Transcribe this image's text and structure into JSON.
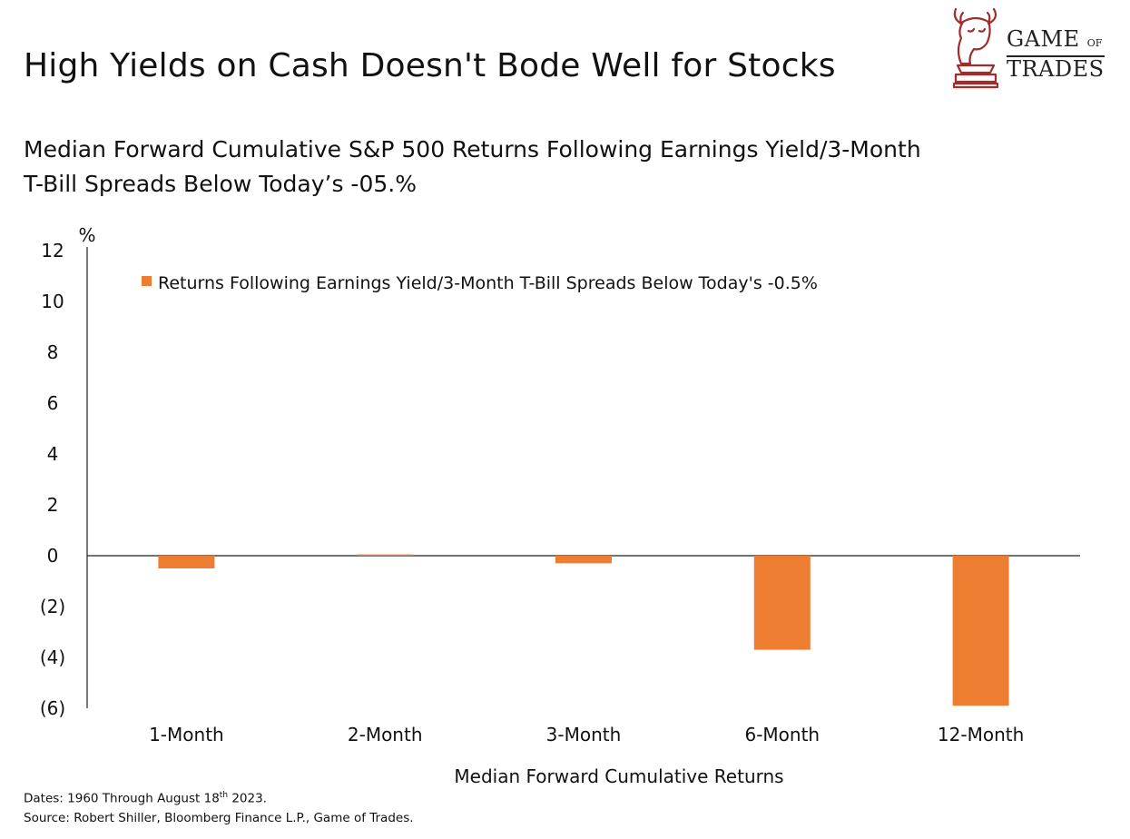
{
  "header": {
    "title": "High Yields on Cash Doesn't Bode Well for Stocks",
    "subtitle_line1": "Median Forward Cumulative S&P 500 Returns Following Earnings Yield/3-Month",
    "subtitle_line2": "T-Bill Spreads Below Today’s -05.%"
  },
  "logo": {
    "word1": "GAME",
    "word1_small": "OF",
    "word2": "TRADES",
    "icon": "bull-chess-knight-icon",
    "color": "#a52a2a"
  },
  "chart_data": {
    "type": "bar",
    "categories": [
      "1-Month",
      "2-Month",
      "3-Month",
      "6-Month",
      "12-Month"
    ],
    "series": [
      {
        "name": "Returns Following Earnings Yield/3-Month T-Bill Spreads Below Today's -0.5%",
        "values": [
          -0.5,
          0.05,
          -0.3,
          -3.7,
          -5.9
        ],
        "color": "#ed7d31"
      }
    ],
    "ylabel": "%",
    "xlabel": "Median Forward Cumulative Returns",
    "ylim": [
      -6,
      12
    ],
    "yticks": [
      12,
      10,
      8,
      6,
      4,
      2,
      0,
      -2,
      -4,
      -6
    ],
    "ytick_labels": [
      "12",
      "10",
      "8",
      "6",
      "4",
      "2",
      "0",
      "(2)",
      "(4)",
      "(6)"
    ],
    "grid": false,
    "legend_position": "top-left"
  },
  "footnotes": {
    "dates_prefix": "Dates: 1960 Through August 18",
    "dates_sup": "th",
    "dates_suffix": " 2023.",
    "source": "Source: Robert Shiller, Bloomberg Finance L.P., Game of Trades."
  }
}
